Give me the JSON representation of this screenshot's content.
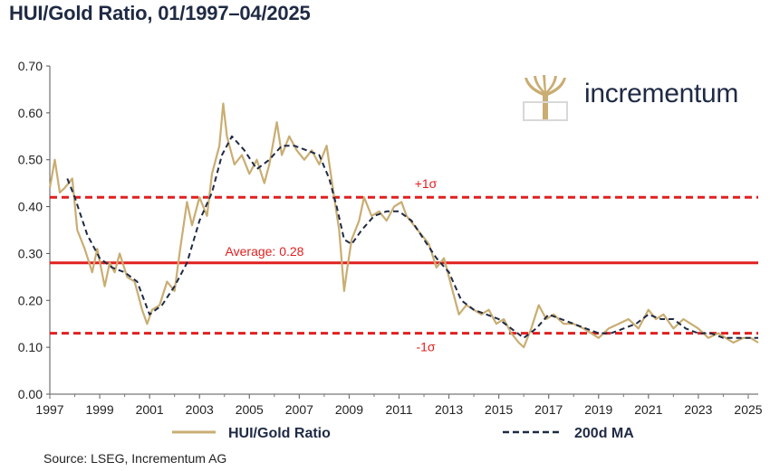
{
  "title": "HUI/Gold Ratio, 01/1997–04/2025",
  "source": "Source: LSEG, Incrementum AG",
  "logo": {
    "text": "incrementum",
    "icon": "tree-logo-icon"
  },
  "colors": {
    "ratio": "#c9ad72",
    "ma": "#1f2a44",
    "average": "#e02020",
    "sigma": "#e02020"
  },
  "chart_data": {
    "type": "line",
    "title": "HUI/Gold Ratio, 01/1997–04/2025",
    "xlim": [
      1997,
      2025.4
    ],
    "ylim": [
      0,
      0.7
    ],
    "x_ticks": [
      "1997",
      "1999",
      "2001",
      "2003",
      "2005",
      "2007",
      "2009",
      "2011",
      "2013",
      "2015",
      "2017",
      "2019",
      "2021",
      "2023",
      "2025"
    ],
    "y_ticks": [
      "0.00",
      "0.10",
      "0.20",
      "0.30",
      "0.40",
      "0.50",
      "0.60",
      "0.70"
    ],
    "legend": {
      "placement": "bottom",
      "entries": [
        "HUI/Gold Ratio",
        "200d MA"
      ]
    },
    "reference_lines": [
      {
        "label": "+1σ",
        "value": 0.42,
        "style": "dashed"
      },
      {
        "label": "Average: 0.28",
        "value": 0.28,
        "style": "solid"
      },
      {
        "label": "-1σ",
        "value": 0.13,
        "style": "dashed"
      }
    ],
    "series": [
      {
        "name": "HUI/Gold Ratio",
        "style": "solid",
        "x": [
          1997.0,
          1997.2,
          1997.4,
          1997.6,
          1997.9,
          1998.1,
          1998.4,
          1998.7,
          1998.9,
          1999.2,
          1999.4,
          1999.6,
          1999.8,
          2000.1,
          2000.4,
          2000.7,
          2000.9,
          2001.1,
          2001.4,
          2001.7,
          2002.0,
          2002.2,
          2002.5,
          2002.7,
          2003.0,
          2003.3,
          2003.5,
          2003.8,
          2003.95,
          2004.1,
          2004.4,
          2004.7,
          2005.0,
          2005.3,
          2005.6,
          2005.8,
          2006.1,
          2006.3,
          2006.6,
          2006.9,
          2007.2,
          2007.5,
          2007.8,
          2008.1,
          2008.4,
          2008.6,
          2008.8,
          2008.9,
          2009.1,
          2009.4,
          2009.6,
          2009.9,
          2010.2,
          2010.5,
          2010.8,
          2011.1,
          2011.3,
          2011.6,
          2011.9,
          2012.2,
          2012.5,
          2012.8,
          2013.1,
          2013.4,
          2013.7,
          2014.0,
          2014.3,
          2014.6,
          2014.9,
          2015.2,
          2015.5,
          2015.8,
          2016.0,
          2016.3,
          2016.6,
          2016.9,
          2017.2,
          2017.6,
          2018.0,
          2018.4,
          2018.7,
          2019.0,
          2019.4,
          2019.8,
          2020.2,
          2020.6,
          2021.0,
          2021.3,
          2021.6,
          2022.0,
          2022.4,
          2022.7,
          2023.0,
          2023.4,
          2023.8,
          2024.1,
          2024.4,
          2024.8,
          2025.1,
          2025.4
        ],
        "values": [
          0.44,
          0.5,
          0.43,
          0.44,
          0.46,
          0.35,
          0.31,
          0.26,
          0.31,
          0.23,
          0.28,
          0.26,
          0.3,
          0.25,
          0.24,
          0.18,
          0.15,
          0.18,
          0.19,
          0.24,
          0.22,
          0.3,
          0.41,
          0.36,
          0.42,
          0.38,
          0.47,
          0.53,
          0.62,
          0.55,
          0.49,
          0.51,
          0.47,
          0.5,
          0.45,
          0.49,
          0.58,
          0.51,
          0.55,
          0.52,
          0.5,
          0.52,
          0.49,
          0.53,
          0.42,
          0.35,
          0.22,
          0.26,
          0.33,
          0.37,
          0.42,
          0.38,
          0.39,
          0.37,
          0.4,
          0.41,
          0.38,
          0.36,
          0.34,
          0.32,
          0.27,
          0.29,
          0.23,
          0.17,
          0.19,
          0.18,
          0.17,
          0.18,
          0.15,
          0.16,
          0.13,
          0.11,
          0.1,
          0.14,
          0.19,
          0.16,
          0.17,
          0.15,
          0.15,
          0.14,
          0.13,
          0.12,
          0.14,
          0.15,
          0.16,
          0.14,
          0.18,
          0.16,
          0.17,
          0.14,
          0.16,
          0.15,
          0.14,
          0.12,
          0.13,
          0.12,
          0.11,
          0.12,
          0.12,
          0.11
        ]
      },
      {
        "name": "200d MA",
        "style": "dashed",
        "x": [
          1997.7,
          1998.0,
          1998.5,
          1999.0,
          1999.5,
          2000.0,
          2000.5,
          2001.0,
          2001.5,
          2002.0,
          2002.5,
          2003.0,
          2003.5,
          2003.9,
          2004.3,
          2004.8,
          2005.3,
          2005.8,
          2006.3,
          2006.8,
          2007.3,
          2007.8,
          2008.2,
          2008.5,
          2008.8,
          2009.1,
          2009.5,
          2010.0,
          2010.5,
          2011.0,
          2011.5,
          2012.0,
          2012.5,
          2013.0,
          2013.5,
          2014.0,
          2014.5,
          2015.0,
          2015.5,
          2016.0,
          2016.5,
          2017.0,
          2017.5,
          2018.0,
          2018.5,
          2019.0,
          2019.5,
          2020.0,
          2020.5,
          2021.0,
          2021.5,
          2022.0,
          2022.5,
          2023.0,
          2023.5,
          2024.0,
          2024.5,
          2025.0,
          2025.4
        ],
        "values": [
          0.46,
          0.42,
          0.34,
          0.29,
          0.27,
          0.26,
          0.24,
          0.17,
          0.19,
          0.23,
          0.28,
          0.37,
          0.43,
          0.51,
          0.55,
          0.52,
          0.48,
          0.5,
          0.53,
          0.53,
          0.52,
          0.51,
          0.46,
          0.4,
          0.33,
          0.32,
          0.35,
          0.38,
          0.39,
          0.39,
          0.37,
          0.33,
          0.29,
          0.26,
          0.2,
          0.18,
          0.17,
          0.16,
          0.14,
          0.12,
          0.14,
          0.17,
          0.16,
          0.15,
          0.14,
          0.13,
          0.13,
          0.14,
          0.15,
          0.17,
          0.16,
          0.16,
          0.14,
          0.13,
          0.13,
          0.12,
          0.12,
          0.12,
          0.12
        ]
      }
    ]
  }
}
